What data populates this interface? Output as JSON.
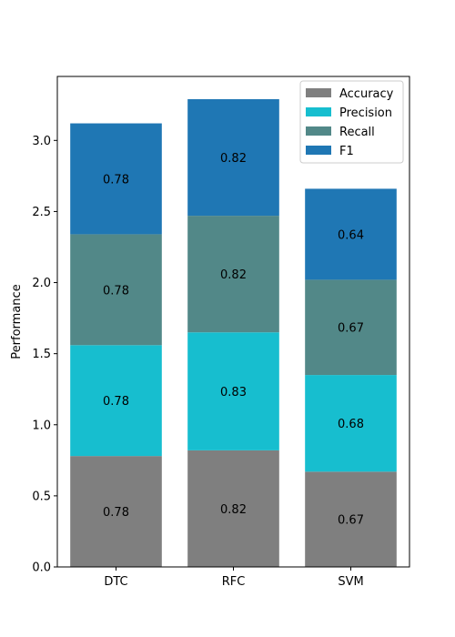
{
  "chart_data": {
    "type": "bar",
    "stacked": true,
    "title": "",
    "xlabel": "",
    "ylabel": "Performance",
    "categories": [
      "DTC",
      "RFC",
      "SVM"
    ],
    "ylim": [
      0,
      3.45
    ],
    "yticks": [
      0.0,
      0.5,
      1.0,
      1.5,
      2.0,
      2.5,
      3.0
    ],
    "ytick_labels": [
      "0.0",
      "0.5",
      "1.0",
      "1.5",
      "2.0",
      "2.5",
      "3.0"
    ],
    "grid": false,
    "legend_position": "top-right",
    "series": [
      {
        "name": "Accuracy",
        "color": "#7f7f7f",
        "values": [
          0.78,
          0.82,
          0.67
        ],
        "labels": [
          "0.78",
          "0.82",
          "0.67"
        ]
      },
      {
        "name": "Precision",
        "color": "#17becf",
        "values": [
          0.78,
          0.83,
          0.68
        ],
        "labels": [
          "0.78",
          "0.83",
          "0.68"
        ]
      },
      {
        "name": "Recall",
        "color": "#528888",
        "values": [
          0.78,
          0.82,
          0.67
        ],
        "labels": [
          "0.78",
          "0.82",
          "0.67"
        ]
      },
      {
        "name": "F1",
        "color": "#1f77b4",
        "values": [
          0.78,
          0.82,
          0.64
        ],
        "labels": [
          "0.78",
          "0.82",
          "0.64"
        ]
      }
    ]
  }
}
